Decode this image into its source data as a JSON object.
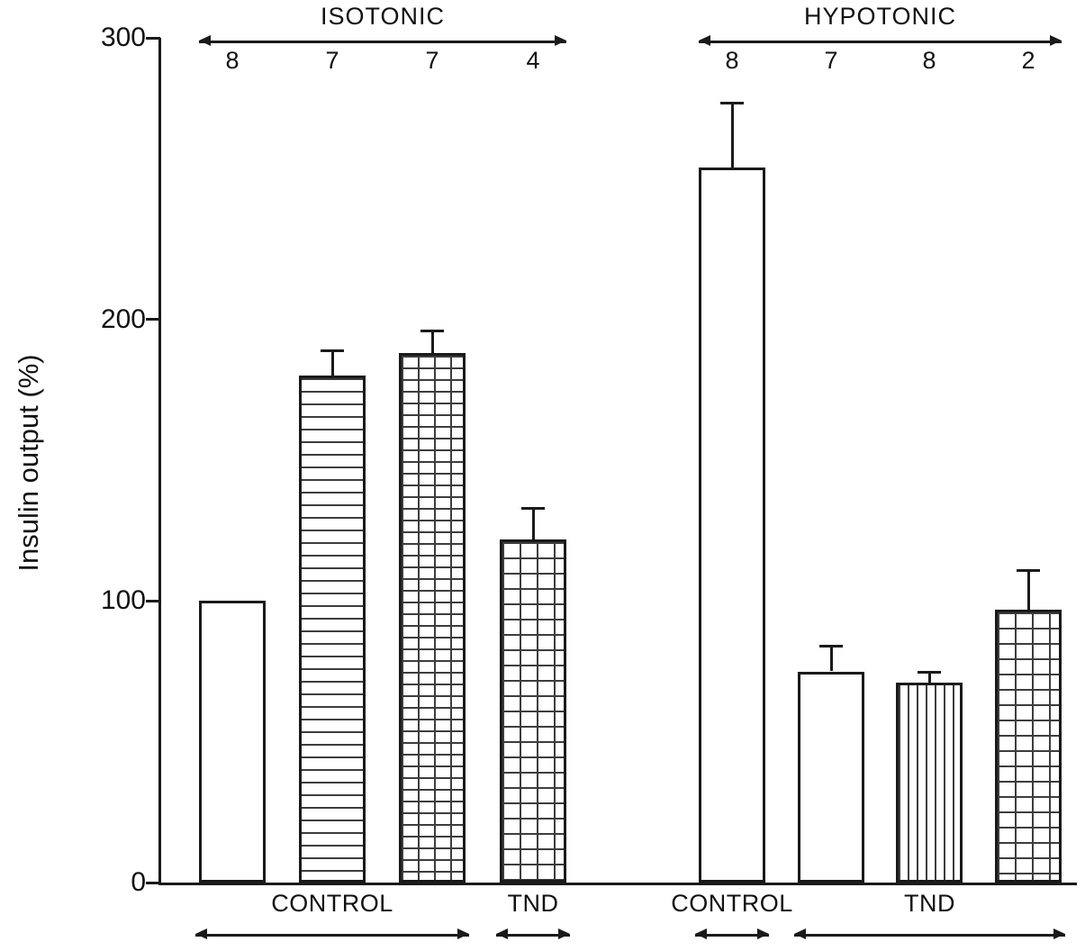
{
  "figure": {
    "background": "#ffffff",
    "ink_color": "#1a1a1a"
  },
  "chart_data": {
    "type": "bar",
    "title": "",
    "ylabel": "Insulin output (%)",
    "xlabel": "",
    "ylim": [
      0,
      300
    ],
    "yticks": [
      "0",
      "100",
      "200",
      "300"
    ],
    "ytick_values": [
      0,
      100,
      200,
      300
    ],
    "grid": false,
    "legend": false,
    "groups": [
      {
        "label": "ISOTONIC",
        "bars": [
          {
            "n_label": "8",
            "value": 100,
            "error": 0,
            "pattern": "plain",
            "condition": "CONTROL"
          },
          {
            "n_label": "7",
            "value": 180,
            "error": 9,
            "pattern": "hlines",
            "condition": "CONTROL"
          },
          {
            "n_label": "7",
            "value": 188,
            "error": 8,
            "pattern": "grid-dense",
            "condition": "CONTROL"
          },
          {
            "n_label": "4",
            "value": 122,
            "error": 11,
            "pattern": "grid",
            "condition": "TND"
          }
        ],
        "condition_spans": [
          {
            "label": "CONTROL",
            "from_bar": 0,
            "to_bar": 2
          },
          {
            "label": "TND",
            "from_bar": 3,
            "to_bar": 3
          }
        ]
      },
      {
        "label": "HYPOTONIC",
        "bars": [
          {
            "n_label": "8",
            "value": 254,
            "error": 23,
            "pattern": "plain",
            "condition": "CONTROL"
          },
          {
            "n_label": "7",
            "value": 75,
            "error": 9,
            "pattern": "plain",
            "condition": "TND"
          },
          {
            "n_label": "8",
            "value": 71,
            "error": 4,
            "pattern": "vlines",
            "condition": "TND"
          },
          {
            "n_label": "2",
            "value": 97,
            "error": 14,
            "pattern": "grid",
            "condition": "TND"
          }
        ],
        "condition_spans": [
          {
            "label": "CONTROL",
            "from_bar": 0,
            "to_bar": 0
          },
          {
            "label": "TND",
            "from_bar": 1,
            "to_bar": 3
          }
        ]
      }
    ]
  }
}
